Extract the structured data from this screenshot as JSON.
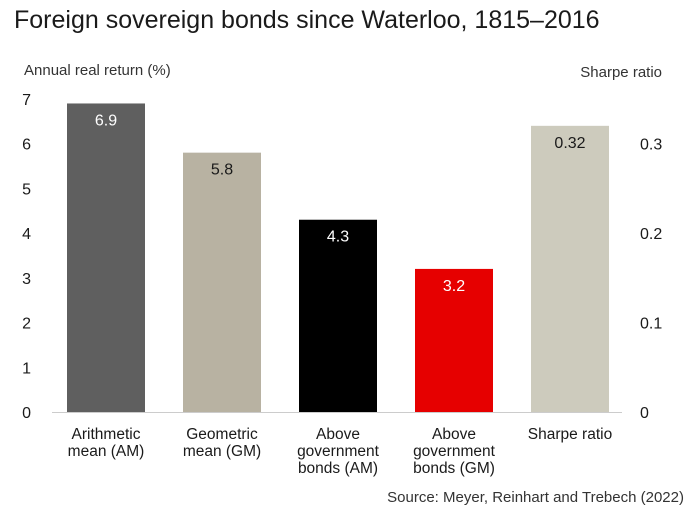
{
  "chart_data": {
    "type": "bar",
    "title": "Foreign sovereign bonds since Waterloo, 1815–2016",
    "ylabel_left": "Annual real return (%)",
    "ylabel_right": "Sharpe ratio",
    "source": "Source: Meyer, Reinhart and Trebech (2022)",
    "ylim_left": [
      0,
      7
    ],
    "ylim_right": [
      0,
      0.35
    ],
    "yticks_left": [
      "0",
      "1",
      "2",
      "3",
      "4",
      "5",
      "6",
      "7"
    ],
    "yticks_right": [
      "0",
      "0.1",
      "0.2",
      "0.3"
    ],
    "grid": false,
    "bars": [
      {
        "category": [
          "Arithmetic",
          "mean (AM)"
        ],
        "value": 6.9,
        "label": "6.9",
        "axis": "left",
        "color": "#5f5f5f",
        "label_color": "#ffffff"
      },
      {
        "category": [
          "Geometric",
          "mean (GM)"
        ],
        "value": 5.8,
        "label": "5.8",
        "axis": "left",
        "color": "#b8b2a2",
        "label_color": "#1a1a1a"
      },
      {
        "category": [
          "Above",
          "government",
          "bonds (AM)"
        ],
        "value": 4.3,
        "label": "4.3",
        "axis": "left",
        "color": "#000000",
        "label_color": "#ffffff"
      },
      {
        "category": [
          "Above",
          "government",
          "bonds (GM)"
        ],
        "value": 3.2,
        "label": "3.2",
        "axis": "left",
        "color": "#e60000",
        "label_color": "#ffffff"
      },
      {
        "category": [
          "Sharpe ratio"
        ],
        "value": 0.32,
        "label": "0.32",
        "axis": "right",
        "color": "#cdcbbd",
        "label_color": "#1a1a1a"
      }
    ]
  }
}
